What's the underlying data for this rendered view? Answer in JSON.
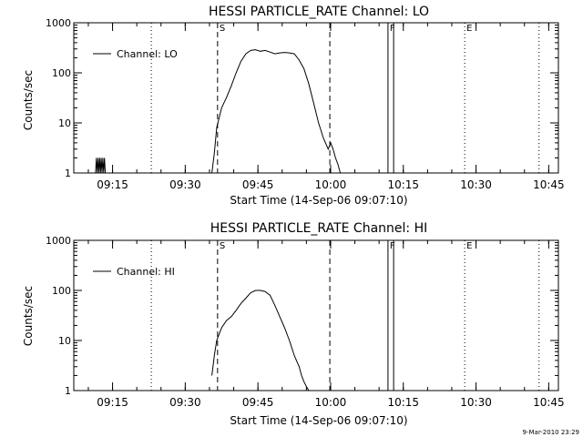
{
  "chart_data": [
    {
      "type": "line",
      "title": "HESSI PARTICLE_RATE Channel: LO",
      "xlabel": "Start Time (14-Sep-06 09:07:10)",
      "ylabel": "Counts/sec",
      "y_scale": "log",
      "ylim": [
        1,
        1000
      ],
      "xlim": [
        "09:07",
        "10:47"
      ],
      "x_ticks": [
        "09:15",
        "09:30",
        "09:45",
        "10:00",
        "10:15",
        "10:30",
        "10:45"
      ],
      "y_ticks": [
        "1",
        "10",
        "100",
        "1000"
      ],
      "legend": {
        "position": "top-left",
        "entries": [
          "Channel: LO"
        ]
      },
      "series": [
        {
          "name": "Channel: LO",
          "x": [
            "09:11:30",
            "09:11:40",
            "09:11:50",
            "09:12:00",
            "09:12:10",
            "09:12:20",
            "09:12:30",
            "09:12:40",
            "09:12:50",
            "09:13:00",
            "09:13:10",
            "09:13:20",
            "09:13:30",
            "09:35:30",
            "09:36:00",
            "09:36:30",
            "09:37:30",
            "09:38:30",
            "09:39:30",
            "09:40:30",
            "09:41:30",
            "09:42:30",
            "09:43:30",
            "09:44:30",
            "09:45:30",
            "09:46:30",
            "09:47:30",
            "09:48:30",
            "09:49:30",
            "09:50:30",
            "09:51:30",
            "09:52:30",
            "09:53:30",
            "09:54:30",
            "09:55:30",
            "09:56:30",
            "09:57:30",
            "09:58:30",
            "09:59:30",
            "10:00:00",
            "10:00:30",
            "10:01:00",
            "10:01:30",
            "10:02:00"
          ],
          "values": [
            1,
            2,
            1,
            2,
            1,
            2,
            1,
            2,
            1,
            2,
            1,
            2,
            1,
            1,
            2.5,
            8,
            20,
            32,
            55,
            100,
            170,
            240,
            280,
            290,
            270,
            280,
            260,
            240,
            250,
            255,
            250,
            240,
            180,
            120,
            60,
            25,
            10,
            5,
            3,
            4,
            3,
            2,
            1.5,
            1
          ]
        }
      ],
      "markers": [
        {
          "time": "09:23:00",
          "style": "dotted",
          "label": ""
        },
        {
          "time": "09:36:40",
          "style": "dashed",
          "label": "S"
        },
        {
          "time": "09:59:50",
          "style": "dashed",
          "label": ""
        },
        {
          "time": "10:11:50",
          "style": "solid",
          "label": "F"
        },
        {
          "time": "10:13:00",
          "style": "solid",
          "label": ""
        },
        {
          "time": "10:27:40",
          "style": "dotted",
          "label": "E"
        },
        {
          "time": "10:43:00",
          "style": "dotted",
          "label": ""
        }
      ],
      "grid": false
    },
    {
      "type": "line",
      "title": "HESSI PARTICLE_RATE Channel: HI",
      "xlabel": "Start Time (14-Sep-06 09:07:10)",
      "ylabel": "Counts/sec",
      "y_scale": "log",
      "ylim": [
        1,
        1000
      ],
      "xlim": [
        "09:07",
        "10:47"
      ],
      "x_ticks": [
        "09:15",
        "09:30",
        "09:45",
        "10:00",
        "10:15",
        "10:30",
        "10:45"
      ],
      "y_ticks": [
        "1",
        "10",
        "100",
        "1000"
      ],
      "legend": {
        "position": "top-left",
        "entries": [
          "Channel: HI"
        ]
      },
      "series": [
        {
          "name": "Channel: HI",
          "x": [
            "09:35:30",
            "09:36:00",
            "09:36:30",
            "09:37:30",
            "09:38:30",
            "09:39:30",
            "09:40:30",
            "09:41:30",
            "09:42:30",
            "09:43:30",
            "09:44:30",
            "09:45:30",
            "09:46:30",
            "09:47:30",
            "09:48:30",
            "09:49:30",
            "09:50:30",
            "09:51:30",
            "09:52:30",
            "09:53:30",
            "09:54:00",
            "09:54:30",
            "09:55:00",
            "09:55:30"
          ],
          "values": [
            2,
            5,
            10,
            18,
            25,
            30,
            40,
            55,
            70,
            90,
            100,
            100,
            95,
            80,
            50,
            30,
            18,
            10,
            5,
            3,
            2,
            1.5,
            1.2,
            1
          ]
        }
      ],
      "markers": [
        {
          "time": "09:23:00",
          "style": "dotted",
          "label": ""
        },
        {
          "time": "09:36:40",
          "style": "dashed",
          "label": "S"
        },
        {
          "time": "09:59:50",
          "style": "dashed",
          "label": ""
        },
        {
          "time": "10:11:50",
          "style": "solid",
          "label": "F"
        },
        {
          "time": "10:13:00",
          "style": "solid",
          "label": ""
        },
        {
          "time": "10:27:40",
          "style": "dotted",
          "label": "E"
        },
        {
          "time": "10:43:00",
          "style": "dotted",
          "label": ""
        }
      ],
      "grid": false
    }
  ],
  "footer": {
    "timestamp": "9-Mar-2010 23:29"
  }
}
